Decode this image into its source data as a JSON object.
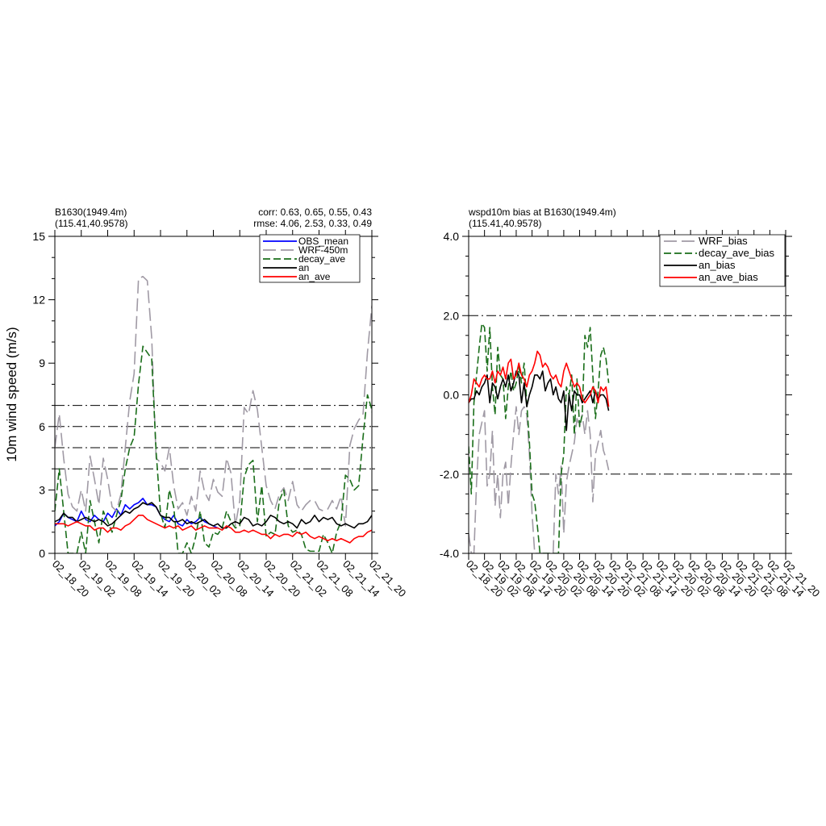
{
  "chart_data": [
    {
      "type": "line",
      "title_left": [
        "B1630(1949.4m)",
        "(115.41,40.9578)"
      ],
      "title_right": [
        "corr:  0.63, 0.65, 0.55, 0.43",
        "rmse: 4.06, 2.53, 0.33, 0.49"
      ],
      "ylabel": "10m wind speed (m/s)",
      "xlabel": "",
      "ylim": [
        0,
        15
      ],
      "yticks": [
        0,
        3,
        6,
        9,
        12,
        15
      ],
      "ytick_labels": [
        "0",
        "3",
        "6",
        "9",
        "12",
        "15"
      ],
      "ytick_minor_step": 1,
      "x_range_hours": [
        0,
        72
      ],
      "xticks": [
        0,
        6,
        12,
        18,
        24,
        30,
        36,
        42,
        48,
        54,
        60,
        66,
        72
      ],
      "xtick_labels": [
        "02_18_20",
        "02_19_02",
        "02_19_08",
        "02_19_14",
        "02_19_20",
        "02_20_02",
        "02_20_08",
        "02_20_14",
        "02_20_20",
        "02_21_02",
        "02_21_08",
        "02_21_14",
        "02_21_20"
      ],
      "hlines": [
        4,
        5,
        6,
        7
      ],
      "legend_position": "top-right",
      "series": [
        {
          "name": "OBS_mean",
          "color": "#0000ff",
          "dash": "solid",
          "step": 1,
          "values": [
            1.3,
            1.5,
            1.9,
            1.7,
            1.6,
            1.5,
            2.0,
            1.6,
            1.5,
            1.8,
            1.6,
            1.5,
            1.9,
            1.7,
            2.1,
            1.8,
            2.3,
            2.1,
            2.3,
            2.4,
            2.6,
            2.3,
            2.3,
            2.2,
            1.8,
            1.6,
            1.5,
            1.8,
            1.4,
            1.3,
            1.6,
            1.4,
            1.5,
            1.7,
            1.5,
            1.4,
            1.3,
            1.2
          ]
        },
        {
          "name": "WRF-450m",
          "color": "#a09aa5",
          "dash": "long",
          "step": 1,
          "values": [
            5.0,
            6.6,
            4.5,
            2.8,
            2.2,
            2.0,
            3.0,
            2.0,
            4.6,
            3.5,
            2.3,
            4.5,
            3.5,
            2.2,
            2.0,
            2.8,
            5.0,
            7.2,
            8.5,
            13.0,
            13.1,
            12.9,
            10.2,
            4.5,
            4.3,
            3.9,
            5.0,
            3.2,
            2.1,
            2.4,
            1.8,
            2.7,
            2.0,
            3.9,
            2.9,
            2.5,
            3.5,
            2.9,
            2.7,
            4.5,
            3.8,
            1.3,
            2.5,
            6.9,
            6.6,
            7.7,
            6.8,
            5.0,
            3.2,
            2.5,
            2.1,
            2.8,
            3.1,
            2.5,
            3.4,
            2.3,
            2.0,
            2.3,
            2.5,
            2.5,
            2.1,
            2.0,
            2.1,
            2.5,
            2.1,
            2.7,
            1.3,
            5.1,
            5.9,
            6.3,
            6.6,
            9.5,
            11.7,
            10.6,
            4.0,
            2.6,
            4.0
          ]
        },
        {
          "name": "decay_ave",
          "color": "#1a6e1a",
          "dash": "medium",
          "step": 1,
          "values": [
            2.0,
            4.0,
            2.0,
            0.0,
            0.0,
            0.0,
            1.0,
            0.0,
            2.5,
            1.5,
            0.5,
            2.0,
            1.5,
            1.0,
            1.8,
            2.5,
            4.0,
            5.0,
            5.5,
            8.0,
            9.8,
            9.5,
            9.2,
            4.8,
            1.9,
            1.2,
            3.0,
            2.2,
            0.0,
            0.0,
            0.5,
            0.0,
            0.8,
            2.0,
            0.5,
            0.3,
            1.0,
            0.9,
            1.2,
            2.0,
            1.5,
            1.2,
            1.3,
            3.6,
            4.2,
            4.4,
            1.5,
            3.2,
            0.8,
            1.0,
            0.9,
            2.5,
            3.0,
            1.3,
            1.0,
            1.1,
            0.9,
            0.2,
            0.1,
            0.1,
            0.1,
            0.9,
            0.5,
            0.0,
            1.0,
            1.5,
            3.7,
            3.5,
            3.0,
            3.2,
            5.5,
            7.5,
            6.8,
            4.0,
            2.0,
            0.8,
            2.5
          ]
        },
        {
          "name": "an",
          "color": "#000000",
          "dash": "solid",
          "step": 1,
          "values": [
            1.5,
            1.6,
            1.9,
            1.7,
            1.7,
            1.5,
            1.6,
            1.7,
            1.6,
            1.5,
            1.6,
            1.5,
            1.3,
            1.4,
            1.6,
            1.8,
            2.0,
            1.9,
            2.1,
            2.2,
            2.4,
            2.3,
            2.4,
            2.2,
            1.8,
            1.7,
            1.7,
            1.5,
            1.5,
            1.6,
            1.4,
            1.5,
            1.4,
            1.5,
            1.6,
            1.4,
            1.3,
            1.4,
            1.2,
            1.2,
            1.4,
            1.5,
            1.4,
            1.7,
            1.6,
            1.3,
            1.4,
            1.3,
            1.5,
            1.8,
            1.7,
            1.5,
            1.4,
            1.5,
            1.4,
            1.2,
            1.6,
            1.4,
            1.5,
            1.8,
            1.5,
            1.7,
            1.6,
            1.7,
            1.4,
            1.3,
            1.4,
            1.3,
            1.2,
            1.4,
            1.4,
            1.5,
            1.8,
            1.9,
            1.9,
            2.2,
            2.1,
            1.8,
            1.7
          ]
        },
        {
          "name": "an_ave",
          "color": "#ff0000",
          "dash": "solid",
          "step": 1,
          "values": [
            1.4,
            1.4,
            1.4,
            1.3,
            1.4,
            1.5,
            1.4,
            1.3,
            1.3,
            1.1,
            1.2,
            1.2,
            1.0,
            1.2,
            1.2,
            1.1,
            1.3,
            1.4,
            1.6,
            1.8,
            1.8,
            1.6,
            1.5,
            1.4,
            1.3,
            1.2,
            1.3,
            1.2,
            1.3,
            1.1,
            1.2,
            1.3,
            1.1,
            1.2,
            1.3,
            1.2,
            1.2,
            1.2,
            1.1,
            1.3,
            1.2,
            1.0,
            1.0,
            1.1,
            1.0,
            1.1,
            1.0,
            0.9,
            0.9,
            0.7,
            0.9,
            0.8,
            0.9,
            0.9,
            0.8,
            1.0,
            0.9,
            1.0,
            0.8,
            0.7,
            0.8,
            0.7,
            0.6,
            0.7,
            0.6,
            0.7,
            0.6,
            0.5,
            0.7,
            0.8,
            0.8,
            1.0,
            1.1,
            1.3,
            1.3,
            1.2,
            1.3,
            1.3,
            1.5
          ]
        }
      ]
    },
    {
      "type": "line",
      "title_left": [
        "wspd10m bias at B1630(1949.4m)",
        "(115.41,40.9578)"
      ],
      "ylabel": "",
      "xlabel": "",
      "ylim": [
        -4,
        4
      ],
      "yticks": [
        -4,
        -2,
        0,
        2,
        4
      ],
      "ytick_labels": [
        "-4.0",
        "-2.0",
        "0.0",
        "2.0",
        "4.0"
      ],
      "ytick_minor_step": 0.5,
      "x_range_hours": [
        0,
        120
      ],
      "xticks": [
        0,
        6,
        12,
        18,
        24,
        30,
        36,
        42,
        48,
        54,
        60,
        66,
        72,
        78,
        84,
        90,
        96,
        102,
        108,
        114,
        120
      ],
      "xtick_labels": [
        "02_18_20",
        "02_19_02",
        "02_19_08",
        "02_19_14",
        "02_19_20",
        "02_20_02",
        "02_20_08",
        "02_20_14",
        "02_20_20",
        "02_21_02",
        "02_21_08",
        "02_21_14",
        "02_21_20",
        "02_20_02",
        "02_20_08",
        "02_20_14",
        "02_20_20",
        "02_21_02",
        "02_21_08",
        "02_21_14",
        "02_21_20"
      ],
      "hlines": [
        -2,
        2
      ],
      "legend_position": "top-right",
      "series": [
        {
          "name": "WRF_bias",
          "color": "#a09aa5",
          "dash": "long",
          "step": 1,
          "values": [
            -3.5,
            -4.0,
            -4.0,
            -2.2,
            -1.0,
            -0.7,
            -0.4,
            -2.3,
            -2.0,
            -0.9,
            -2.8,
            -2.0,
            -3.1,
            -2.0,
            -1.7,
            -2.8,
            -1.8,
            -1.0,
            -0.3,
            -1.0,
            -0.4,
            -0.3,
            -0.5,
            -1.5,
            -3.0,
            -4.0,
            -4.0,
            -4.0,
            -4.0,
            -4.0,
            -4.0,
            -4.0,
            -4.0,
            -2.0,
            -2.5,
            -1.8,
            -3.5,
            -2.2,
            -1.8,
            -1.5,
            -1.2,
            -0.6,
            -0.8,
            -0.5,
            -1.0,
            -0.4,
            -1.0,
            -2.7,
            -1.5,
            -1.2,
            -0.9,
            -1.4,
            -1.6,
            -1.9
          ]
        },
        {
          "name": "decay_ave_bias",
          "color": "#1a6e1a",
          "dash": "medium",
          "step": 1,
          "values": [
            -1.3,
            -2.5,
            -0.2,
            0.5,
            1.2,
            1.8,
            1.7,
            0.6,
            1.7,
            0.2,
            -0.5,
            1.2,
            0.5,
            0.4,
            -0.6,
            0.2,
            0.6,
            0.1,
            0.3,
            0.7,
            0.3,
            0.8,
            -0.2,
            -1.2,
            -2.5,
            -2.7,
            -3.3,
            -4.0,
            -4.0,
            -4.0,
            -4.0,
            -4.0,
            -4.0,
            -4.0,
            -4.0,
            -2.0,
            -1.5,
            0.2,
            0.0,
            0.5,
            -1.0,
            0.4,
            -0.8,
            -0.5,
            1.5,
            1.2,
            1.7,
            0.5,
            -0.6,
            0.1,
            1.0,
            1.2,
            0.9,
            0.3
          ]
        },
        {
          "name": "an_bias",
          "color": "#000000",
          "dash": "solid",
          "step": 1,
          "values": [
            -0.2,
            -0.1,
            -0.1,
            0.1,
            0.0,
            0.2,
            0.3,
            0.5,
            -0.2,
            0.3,
            0.2,
            -0.1,
            0.2,
            0.4,
            0.2,
            0.5,
            0.1,
            0.3,
            0.6,
            0.5,
            -0.2,
            0.3,
            -0.3,
            0.0,
            0.2,
            0.5,
            0.5,
            0.4,
            0.6,
            0.1,
            0.3,
            0.4,
            0.0,
            0.2,
            -0.1,
            -0.2,
            0.1,
            -0.9,
            0.0,
            -0.4,
            0.1,
            0.0,
            0.0,
            -0.2,
            -0.1,
            0.0,
            0.1,
            -0.2,
            0.1,
            -0.1,
            0.0,
            0.0,
            -0.1,
            -0.4
          ]
        },
        {
          "name": "an_ave_bias",
          "color": "#ff0000",
          "dash": "solid",
          "step": 1,
          "values": [
            -0.2,
            0.0,
            0.4,
            0.3,
            0.2,
            0.4,
            0.5,
            0.4,
            0.4,
            0.6,
            0.3,
            0.6,
            0.5,
            0.7,
            0.4,
            0.8,
            0.9,
            0.4,
            0.5,
            0.8,
            0.5,
            0.4,
            0.2,
            0.5,
            0.6,
            0.8,
            1.1,
            1.0,
            0.7,
            0.8,
            0.7,
            0.5,
            0.4,
            0.5,
            0.3,
            0.2,
            0.6,
            0.8,
            0.6,
            0.4,
            0.2,
            0.3,
            0.2,
            -0.1,
            -0.2,
            -0.1,
            0.0,
            0.2,
            0.1,
            -0.2,
            0.2,
            0.1,
            0.2,
            -0.3
          ]
        }
      ]
    }
  ]
}
